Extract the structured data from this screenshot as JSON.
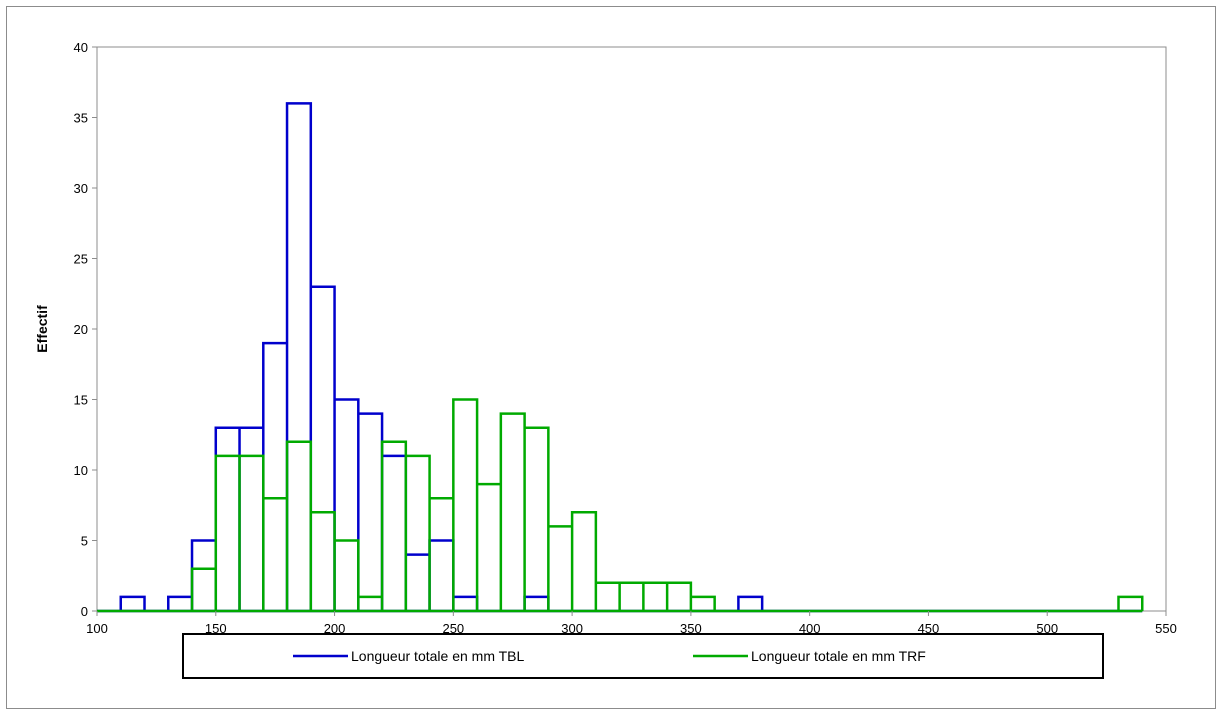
{
  "chart_data": {
    "type": "bar",
    "title": "",
    "xlabel": "",
    "ylabel": "Effectif",
    "xlim": [
      100,
      550
    ],
    "ylim": [
      0,
      40
    ],
    "x_ticks": [
      100,
      150,
      200,
      250,
      300,
      350,
      400,
      450,
      500,
      550
    ],
    "y_ticks": [
      0,
      5,
      10,
      15,
      20,
      25,
      30,
      35,
      40
    ],
    "bin_width": 10,
    "bin_starts": [
      100,
      110,
      120,
      130,
      140,
      150,
      160,
      170,
      180,
      190,
      200,
      210,
      220,
      230,
      240,
      250,
      260,
      270,
      280,
      290,
      300,
      310,
      320,
      330,
      340,
      350,
      360,
      370,
      380,
      390,
      400,
      410,
      420,
      430,
      440,
      450,
      460,
      470,
      480,
      490,
      500,
      510,
      520,
      530
    ],
    "series": [
      {
        "name": "Longueur totale en mm TBL",
        "color": "#0000cc",
        "values": [
          0,
          1,
          0,
          1,
          5,
          13,
          13,
          19,
          36,
          23,
          15,
          14,
          11,
          4,
          5,
          1,
          0,
          0,
          1,
          0,
          0,
          0,
          0,
          0,
          0,
          0,
          0,
          1,
          0,
          0,
          0,
          0,
          0,
          0,
          0,
          0,
          0,
          0,
          0,
          0,
          0,
          0,
          0,
          0
        ]
      },
      {
        "name": "Longueur totale en mm TRF",
        "color": "#00aa00",
        "values": [
          0,
          0,
          0,
          0,
          3,
          11,
          11,
          8,
          12,
          7,
          5,
          1,
          12,
          11,
          8,
          15,
          9,
          14,
          13,
          6,
          7,
          2,
          2,
          2,
          2,
          1,
          0,
          0,
          0,
          0,
          0,
          0,
          0,
          0,
          0,
          0,
          0,
          0,
          0,
          0,
          0,
          0,
          0,
          1
        ]
      }
    ],
    "grid": false,
    "legend_position": "bottom"
  }
}
